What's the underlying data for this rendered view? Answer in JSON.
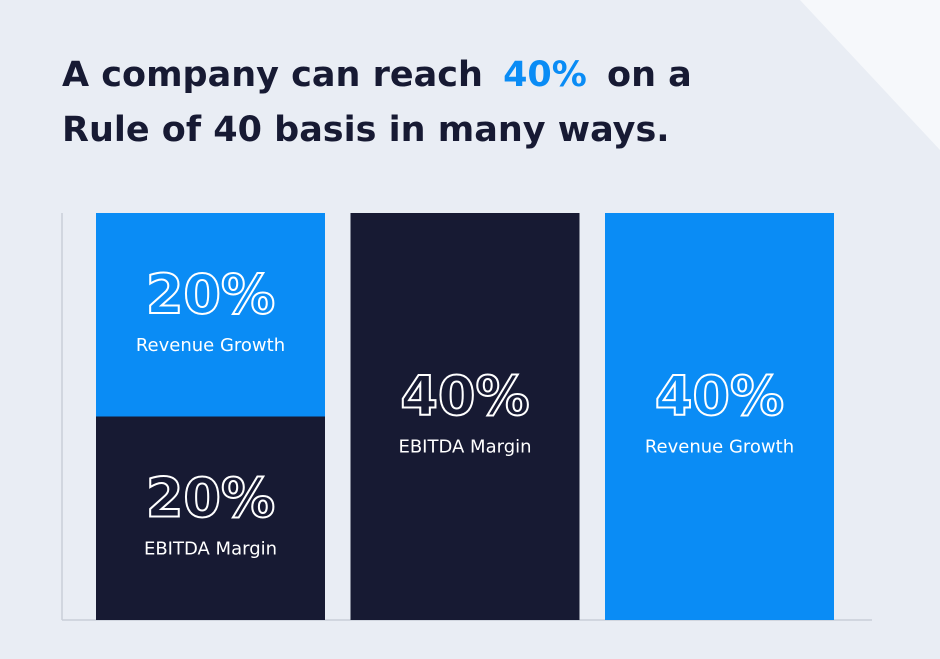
{
  "chart_data": {
    "type": "stacked-bar",
    "title": [
      "A company can reach",
      "40%",
      "on a",
      "Rule of 40 basis in many ways."
    ],
    "series": [
      {
        "name": "EBITDA Margin",
        "color": "#171a33",
        "values": [
          20,
          40,
          null
        ],
        "value_labels": [
          "20%",
          "40%",
          null
        ]
      },
      {
        "name": "Revenue Growth",
        "color": "#0a8cf5",
        "values": [
          20,
          null,
          40
        ],
        "value_labels": [
          "20%",
          null,
          "40%"
        ]
      }
    ],
    "title_highlight_color": "#0a8cf5"
  }
}
